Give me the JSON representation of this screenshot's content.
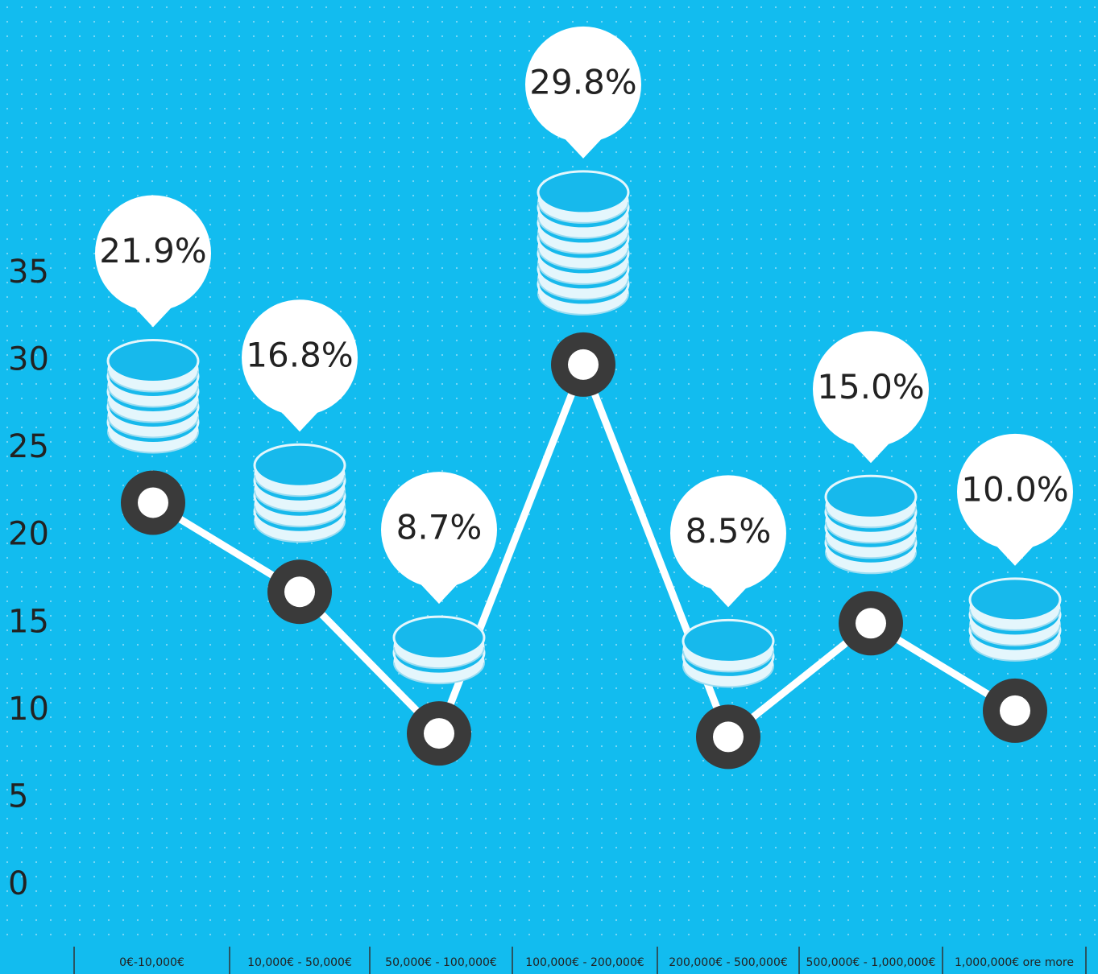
{
  "chart_data": {
    "type": "line",
    "categories": [
      "0€-10,000€",
      "10,000€ - 50,000€",
      "50,000€ - 100,000€",
      "100,000€ - 200,000€",
      "200,000€ - 500,000€",
      "500,000€ - 1,000,000€",
      "1,000,000€ ore more"
    ],
    "values": [
      21.9,
      16.8,
      8.7,
      29.8,
      8.5,
      15.0,
      10.0
    ],
    "value_labels": [
      "21.9%",
      "16.8%",
      "8.7%",
      "29.8%",
      "8.5%",
      "15.0%",
      "10.0%"
    ],
    "color": "#ffffff",
    "ylim": [
      0,
      35
    ],
    "yticks": [
      0,
      5,
      10,
      15,
      20,
      25,
      30,
      35
    ]
  }
}
